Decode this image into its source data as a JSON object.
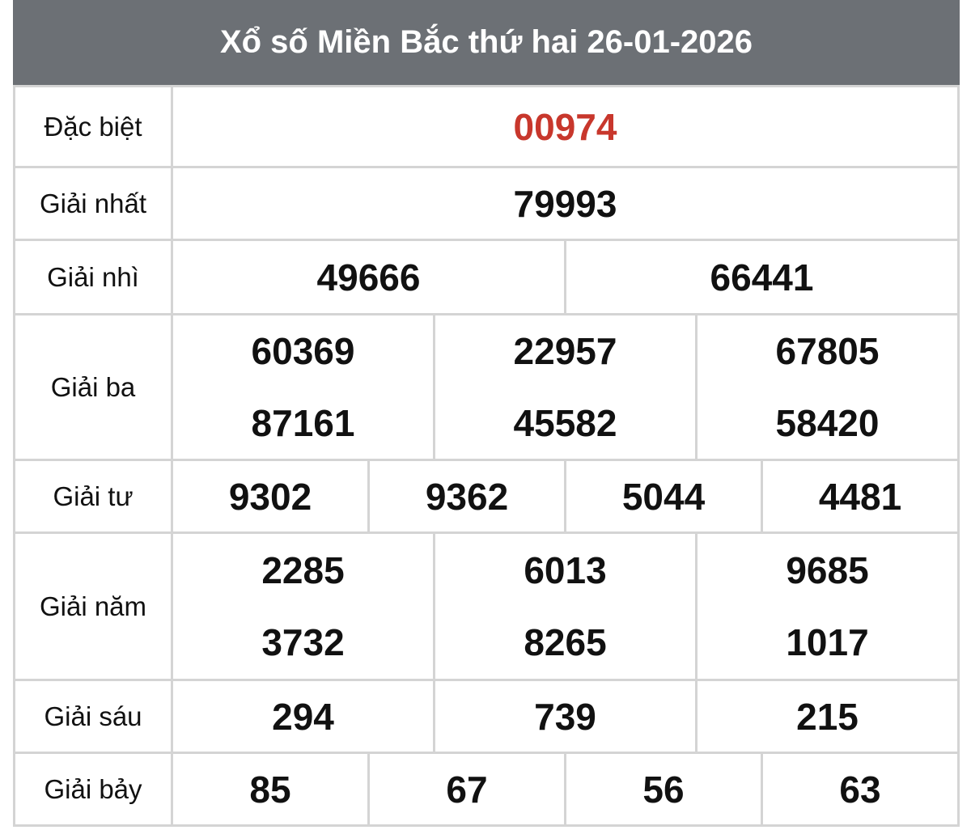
{
  "title": "Xổ số Miền Bắc thứ hai 26-01-2026",
  "colors": {
    "header_bg": "#6c7075",
    "special_prize": "#c8372c",
    "border": "#d4d4d4"
  },
  "prizes": [
    {
      "label": "Đặc biệt",
      "cols": [
        [
          "00974"
        ]
      ]
    },
    {
      "label": "Giải nhất",
      "cols": [
        [
          "79993"
        ]
      ]
    },
    {
      "label": "Giải nhì",
      "cols": [
        [
          "49666"
        ],
        [
          "66441"
        ]
      ]
    },
    {
      "label": "Giải ba",
      "cols": [
        [
          "60369",
          "87161"
        ],
        [
          "22957",
          "45582"
        ],
        [
          "67805",
          "58420"
        ]
      ]
    },
    {
      "label": "Giải tư",
      "cols": [
        [
          "9302"
        ],
        [
          "9362"
        ],
        [
          "5044"
        ],
        [
          "4481"
        ]
      ]
    },
    {
      "label": "Giải năm",
      "cols": [
        [
          "2285",
          "3732"
        ],
        [
          "6013",
          "8265"
        ],
        [
          "9685",
          "1017"
        ]
      ]
    },
    {
      "label": "Giải sáu",
      "cols": [
        [
          "294"
        ],
        [
          "739"
        ],
        [
          "215"
        ]
      ]
    },
    {
      "label": "Giải bảy",
      "cols": [
        [
          "85"
        ],
        [
          "67"
        ],
        [
          "56"
        ],
        [
          "63"
        ]
      ]
    }
  ]
}
